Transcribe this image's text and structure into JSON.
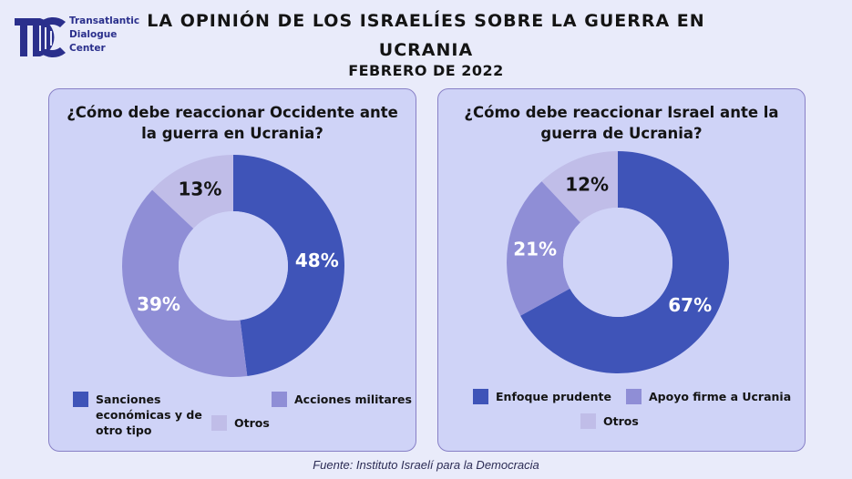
{
  "logo": {
    "lines": [
      "Transatlantic",
      "Dialogue",
      "Center"
    ]
  },
  "title": "LA OPINIÓN DE LOS ISRAELÍES SOBRE LA GUERRA EN UCRANIA",
  "subtitle": "FEBRERO DE 2022",
  "source": "Fuente: Instituto Israelí para la Democracia",
  "colors": {
    "dark": "#3f54b8",
    "mid": "#8f8ed6",
    "light": "#c0bde8",
    "card": "#cfd3f7"
  },
  "chart_data": [
    {
      "type": "pie",
      "title": "¿Cómo debe reaccionar Occidente ante la guerra en Ucrania?",
      "slices": [
        {
          "label": "Sanciones económicas y de otro tipo",
          "value": 48,
          "display": "48%"
        },
        {
          "label": "Acciones militares",
          "value": 39,
          "display": "39%"
        },
        {
          "label": "Otros",
          "value": 13,
          "display": "13%"
        }
      ],
      "legend_position": "bottom"
    },
    {
      "type": "pie",
      "title": "¿Cómo debe reaccionar Israel ante la guerra de Ucrania?",
      "slices": [
        {
          "label": "Enfoque prudente",
          "value": 67,
          "display": "67%"
        },
        {
          "label": "Apoyo firme a Ucrania",
          "value": 21,
          "display": "21%"
        },
        {
          "label": "Otros",
          "value": 12,
          "display": "12%"
        }
      ],
      "legend_position": "bottom"
    }
  ]
}
